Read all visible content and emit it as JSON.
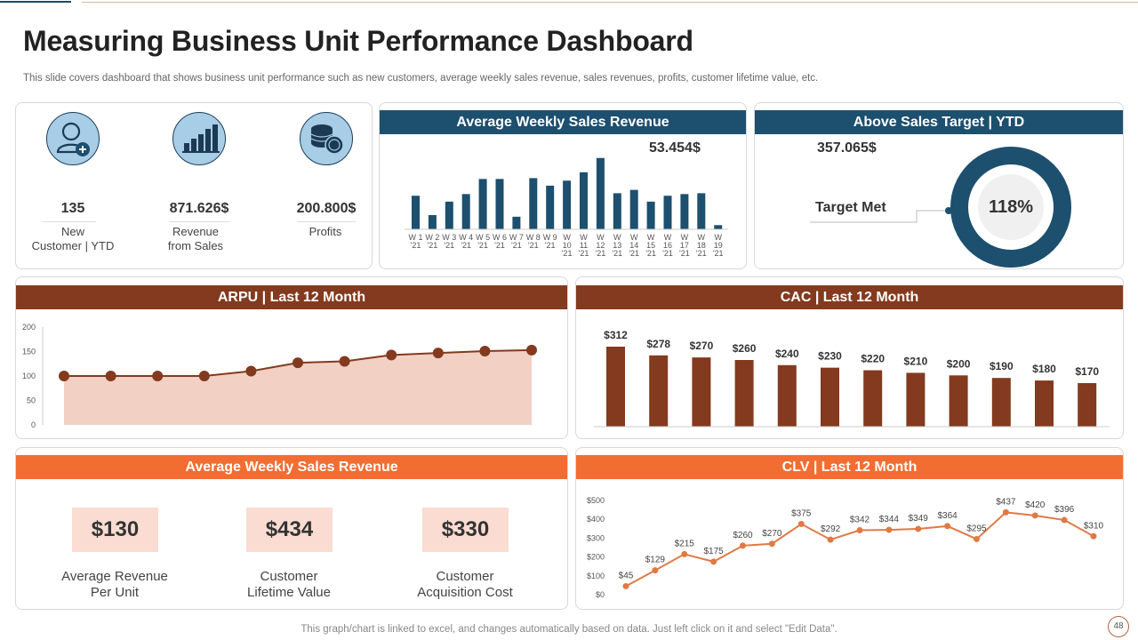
{
  "title": "Measuring Business Unit Performance Dashboard",
  "subtitle": "This slide covers dashboard that shows business unit performance such as new customers, average weekly sales revenue, sales revenues, profits, customer lifetime value, etc.",
  "kpis": [
    {
      "icon": "new-customer-icon",
      "value": "135",
      "label_line1": "New",
      "label_line2": "Customer | YTD"
    },
    {
      "icon": "bar-growth-icon",
      "value": "871.626$",
      "label_line1": "Revenue",
      "label_line2": "from Sales"
    },
    {
      "icon": "coins-icon",
      "value": "200.800$",
      "label_line1": "Profits",
      "label_line2": ""
    }
  ],
  "weekly_panel": {
    "title": "Average Weekly Sales Revenue",
    "headline": "53.454$"
  },
  "target_panel": {
    "title": "Above Sales Target | YTD",
    "headline": "357.065$",
    "label": "Target Met",
    "percent_text": "118%",
    "percent": 1.18
  },
  "arpu_panel": {
    "title": "ARPU | Last 12 Month"
  },
  "cac_panel": {
    "title": "CAC | Last 12 Month"
  },
  "metrics_panel": {
    "title": "Average Weekly Sales Revenue",
    "items": [
      {
        "value": "$130",
        "line1": "Average Revenue",
        "line2": "Per Unit"
      },
      {
        "value": "$434",
        "line1": "Customer",
        "line2": "Lifetime Value"
      },
      {
        "value": "$330",
        "line1": "Customer",
        "line2": "Acquisition Cost"
      }
    ]
  },
  "clv_panel": {
    "title": "CLV | Last 12 Month"
  },
  "footer": "This graph/chart is linked to excel,  and changes automatically based on data. Just left click on it and select \"Edit Data\".",
  "page_number": "48",
  "colors": {
    "blue": "#1d4f6e",
    "brown": "#833a1e",
    "orange": "#f26d32",
    "area": "#f3d0c4",
    "clv_line": "#e07a45"
  },
  "chart_data": [
    {
      "type": "bar",
      "title": "Average Weekly Sales Revenue",
      "categories": [
        [
          "W 1",
          "'21"
        ],
        [
          "W 2",
          "'21"
        ],
        [
          "W 3",
          "'21"
        ],
        [
          "W 4",
          "'21"
        ],
        [
          "W 5",
          "'21"
        ],
        [
          "W 6",
          "'21"
        ],
        [
          "W 7",
          "'21"
        ],
        [
          "W 8",
          "'21"
        ],
        [
          "W 9",
          "'21"
        ],
        [
          "W",
          "10",
          "'21"
        ],
        [
          "W",
          "11",
          "'21"
        ],
        [
          "W",
          "12",
          "'21"
        ],
        [
          "W",
          "13",
          "'21"
        ],
        [
          "W",
          "14",
          "'21"
        ],
        [
          "W",
          "15",
          "'21"
        ],
        [
          "W",
          "16",
          "'21"
        ],
        [
          "W",
          "17",
          "'21"
        ],
        [
          "W",
          "18",
          "'21"
        ],
        [
          "W",
          "19",
          "'21"
        ]
      ],
      "values": [
        40,
        17,
        33,
        42,
        60,
        60,
        15,
        61,
        52,
        58,
        68,
        85,
        43,
        47,
        33,
        40,
        42,
        43,
        5
      ],
      "ylim": [
        0,
        90
      ]
    },
    {
      "type": "area",
      "title": "ARPU | Last 12 Month",
      "x": [
        1,
        2,
        3,
        4,
        5,
        6,
        7,
        8,
        9,
        10,
        11
      ],
      "values": [
        100,
        100,
        100,
        100,
        110,
        127,
        130,
        143,
        147,
        151,
        153
      ],
      "yticks": [
        "0",
        "50",
        "100",
        "150",
        "200"
      ],
      "ylim": [
        0,
        200
      ]
    },
    {
      "type": "bar",
      "title": "CAC | Last 12 Month",
      "labels": [
        "$312",
        "$278",
        "$270",
        "$260",
        "$240",
        "$230",
        "$220",
        "$210",
        "$200",
        "$190",
        "$180",
        "$170"
      ],
      "values": [
        312,
        278,
        270,
        260,
        240,
        230,
        220,
        210,
        200,
        190,
        180,
        170
      ],
      "ylim": [
        0,
        312
      ]
    },
    {
      "type": "line",
      "title": "CLV | Last 12 Month",
      "labels": [
        "$45",
        "$129",
        "$215",
        "$175",
        "$260",
        "$270",
        "$375",
        "$292",
        "$342",
        "$344",
        "$349",
        "$364",
        "$295",
        "$437",
        "$420",
        "$396",
        "$310"
      ],
      "values": [
        45,
        129,
        215,
        175,
        260,
        270,
        375,
        292,
        342,
        344,
        349,
        364,
        295,
        437,
        420,
        396,
        310
      ],
      "yticks": [
        "$0",
        "$100",
        "$200",
        "$300",
        "$400",
        "$500"
      ],
      "ylim": [
        0,
        500
      ]
    }
  ]
}
